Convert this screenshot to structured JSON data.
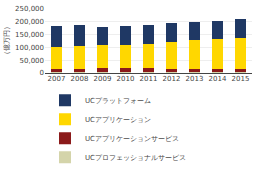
{
  "chart_data": {
    "type": "bar",
    "stacked": true,
    "categories": [
      "2007",
      "2008",
      "2009",
      "2010",
      "2011",
      "2012",
      "2013",
      "2014",
      "2015"
    ],
    "ylabel": "（億万円）",
    "series": [
      {
        "name": "UCプロフェッショナルサービス",
        "color": "#D4D4AA",
        "values": [
          5000,
          5000,
          5000,
          5000,
          5000,
          5000,
          5000,
          5000,
          5000
        ]
      },
      {
        "name": "UCアプリケーションサービス",
        "color": "#8B1A1A",
        "values": [
          10000,
          12000,
          14000,
          13000,
          14000,
          12000,
          12000,
          10000,
          10000
        ]
      },
      {
        "name": "UCアプリケーション",
        "color": "#FFD700",
        "values": [
          88000,
          90000,
          90000,
          92000,
          95000,
          105000,
          110000,
          118000,
          122000
        ]
      },
      {
        "name": "UCプラットフォーム",
        "color": "#1F3864",
        "values": [
          82000,
          82000,
          72000,
          74000,
          72000,
          72000,
          72000,
          72000,
          75000
        ]
      }
    ],
    "ylim": [
      0,
      250000
    ],
    "yticks": [
      0,
      {
        "value": 50000,
        "label": "50,000"
      },
      {
        "value": 100000,
        "label": "100,000"
      },
      {
        "value": 150000,
        "label": "150,000"
      },
      {
        "value": 200000,
        "label": "200,000"
      },
      {
        "value": 250000,
        "label": "250,000"
      }
    ],
    "grid": true,
    "legend": "bottom"
  }
}
